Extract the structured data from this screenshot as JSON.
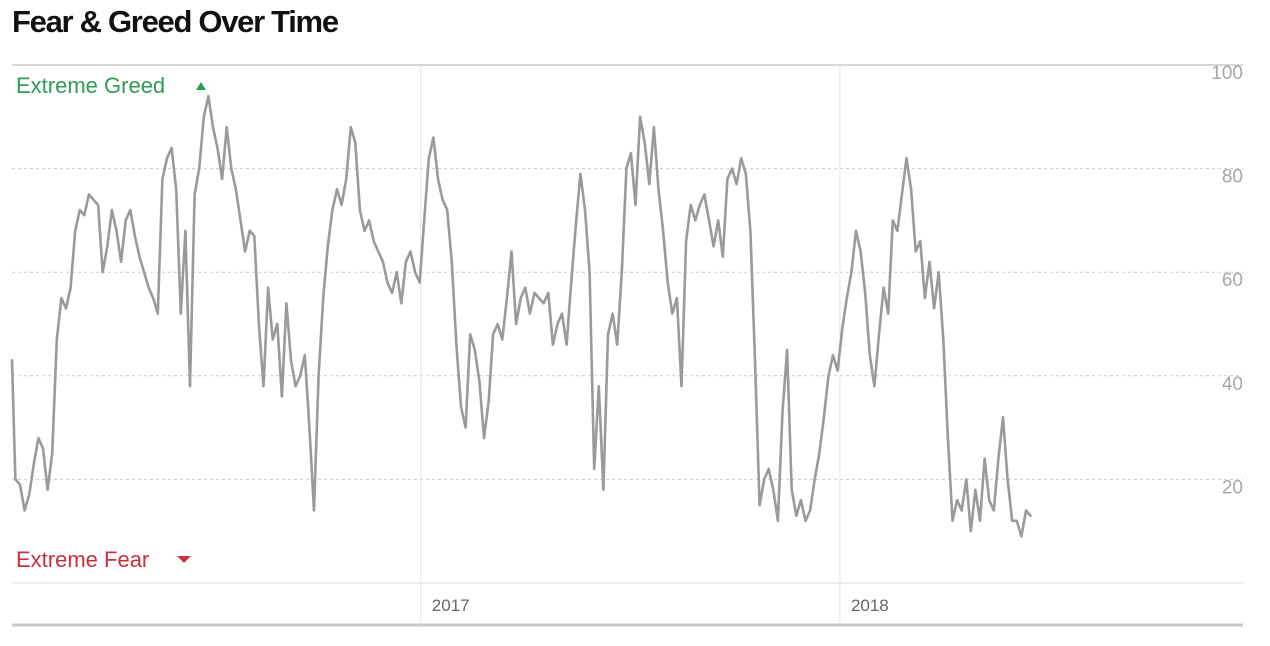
{
  "title": "Fear & Greed Over Time",
  "colors": {
    "line": "#9a9a9a",
    "greed": "#2e9c54",
    "fear": "#c8313f",
    "grid": "#cccccc",
    "tick": "#a7a7a7"
  },
  "markers": {
    "top_label": "Extreme Greed",
    "top_icon": "up-triangle-icon",
    "bottom_label": "Extreme Fear",
    "bottom_icon": "down-triangle-icon"
  },
  "chart_data": {
    "type": "line",
    "title": "Fear & Greed Over Time",
    "xlabel": "",
    "ylabel": "",
    "x_unit": "days before the start of 2017 (negative) / after",
    "x_range": [
      -356,
      716
    ],
    "ylim": [
      0,
      100
    ],
    "y_ticks": [
      20,
      40,
      60,
      80,
      100
    ],
    "y_axis_side": "right",
    "grid": "horizontal dashed",
    "x_tick_labels": [
      {
        "label": "2017",
        "x": 0
      },
      {
        "label": "2018",
        "x": 365
      }
    ],
    "series": [
      {
        "values": [
          [
            -356,
            43
          ],
          [
            -353,
            20
          ],
          [
            -349,
            19
          ],
          [
            -345,
            14
          ],
          [
            -341,
            17
          ],
          [
            -337,
            23
          ],
          [
            -333,
            28
          ],
          [
            -329,
            26
          ],
          [
            -325,
            18
          ],
          [
            -321,
            25
          ],
          [
            -317,
            47
          ],
          [
            -313,
            55
          ],
          [
            -309,
            53
          ],
          [
            -305,
            57
          ],
          [
            -301,
            68
          ],
          [
            -297,
            72
          ],
          [
            -293,
            71
          ],
          [
            -289,
            75
          ],
          [
            -285,
            74
          ],
          [
            -281,
            73
          ],
          [
            -277,
            60
          ],
          [
            -273,
            65
          ],
          [
            -269,
            72
          ],
          [
            -265,
            68
          ],
          [
            -261,
            62
          ],
          [
            -257,
            70
          ],
          [
            -253,
            72
          ],
          [
            -249,
            67
          ],
          [
            -245,
            63
          ],
          [
            -241,
            60
          ],
          [
            -237,
            57
          ],
          [
            -233,
            55
          ],
          [
            -229,
            52
          ],
          [
            -225,
            78
          ],
          [
            -221,
            82
          ],
          [
            -217,
            84
          ],
          [
            -213,
            76
          ],
          [
            -209,
            52
          ],
          [
            -205,
            68
          ],
          [
            -201,
            38
          ],
          [
            -197,
            75
          ],
          [
            -193,
            80
          ],
          [
            -189,
            90
          ],
          [
            -185,
            94
          ],
          [
            -181,
            88
          ],
          [
            -177,
            84
          ],
          [
            -173,
            78
          ],
          [
            -169,
            88
          ],
          [
            -165,
            80
          ],
          [
            -161,
            76
          ],
          [
            -157,
            70
          ],
          [
            -153,
            64
          ],
          [
            -149,
            68
          ],
          [
            -145,
            67
          ],
          [
            -141,
            50
          ],
          [
            -137,
            38
          ],
          [
            -133,
            57
          ],
          [
            -129,
            47
          ],
          [
            -125,
            50
          ],
          [
            -121,
            36
          ],
          [
            -117,
            54
          ],
          [
            -113,
            43
          ],
          [
            -109,
            38
          ],
          [
            -105,
            40
          ],
          [
            -101,
            44
          ],
          [
            -97,
            30
          ],
          [
            -93,
            14
          ],
          [
            -89,
            40
          ],
          [
            -85,
            55
          ],
          [
            -81,
            65
          ],
          [
            -77,
            72
          ],
          [
            -73,
            76
          ],
          [
            -69,
            73
          ],
          [
            -65,
            78
          ],
          [
            -61,
            88
          ],
          [
            -57,
            85
          ],
          [
            -53,
            72
          ],
          [
            -49,
            68
          ],
          [
            -45,
            70
          ],
          [
            -41,
            66
          ],
          [
            -37,
            64
          ],
          [
            -33,
            62
          ],
          [
            -29,
            58
          ],
          [
            -25,
            56
          ],
          [
            -21,
            60
          ],
          [
            -17,
            54
          ],
          [
            -13,
            62
          ],
          [
            -9,
            64
          ],
          [
            -5,
            60
          ],
          [
            -1,
            58
          ],
          [
            3,
            70
          ],
          [
            7,
            82
          ],
          [
            11,
            86
          ],
          [
            15,
            78
          ],
          [
            19,
            74
          ],
          [
            23,
            72
          ],
          [
            27,
            62
          ],
          [
            31,
            46
          ],
          [
            35,
            34
          ],
          [
            39,
            30
          ],
          [
            43,
            48
          ],
          [
            47,
            45
          ],
          [
            51,
            39
          ],
          [
            55,
            28
          ],
          [
            59,
            35
          ],
          [
            63,
            48
          ],
          [
            67,
            50
          ],
          [
            71,
            47
          ],
          [
            75,
            55
          ],
          [
            79,
            64
          ],
          [
            83,
            50
          ],
          [
            87,
            55
          ],
          [
            91,
            57
          ],
          [
            95,
            52
          ],
          [
            99,
            56
          ],
          [
            103,
            55
          ],
          [
            107,
            54
          ],
          [
            111,
            56
          ],
          [
            115,
            46
          ],
          [
            119,
            50
          ],
          [
            123,
            52
          ],
          [
            127,
            46
          ],
          [
            131,
            58
          ],
          [
            135,
            69
          ],
          [
            139,
            79
          ],
          [
            143,
            72
          ],
          [
            147,
            60
          ],
          [
            151,
            22
          ],
          [
            155,
            38
          ],
          [
            159,
            18
          ],
          [
            163,
            48
          ],
          [
            167,
            52
          ],
          [
            171,
            46
          ],
          [
            175,
            60
          ],
          [
            179,
            80
          ],
          [
            183,
            83
          ],
          [
            187,
            73
          ],
          [
            191,
            90
          ],
          [
            195,
            85
          ],
          [
            199,
            77
          ],
          [
            203,
            88
          ],
          [
            207,
            76
          ],
          [
            211,
            68
          ],
          [
            215,
            58
          ],
          [
            219,
            52
          ],
          [
            223,
            55
          ],
          [
            227,
            38
          ],
          [
            231,
            66
          ],
          [
            235,
            73
          ],
          [
            239,
            70
          ],
          [
            243,
            73
          ],
          [
            247,
            75
          ],
          [
            251,
            70
          ],
          [
            255,
            65
          ],
          [
            259,
            70
          ],
          [
            263,
            63
          ],
          [
            267,
            78
          ],
          [
            271,
            80
          ],
          [
            275,
            77
          ],
          [
            279,
            82
          ],
          [
            283,
            79
          ],
          [
            287,
            68
          ],
          [
            291,
            43
          ],
          [
            295,
            15
          ],
          [
            299,
            20
          ],
          [
            303,
            22
          ],
          [
            307,
            18
          ],
          [
            311,
            12
          ],
          [
            315,
            33
          ],
          [
            319,
            45
          ],
          [
            323,
            18
          ],
          [
            327,
            13
          ],
          [
            331,
            16
          ],
          [
            335,
            12
          ],
          [
            339,
            14
          ],
          [
            343,
            20
          ],
          [
            347,
            25
          ],
          [
            351,
            32
          ],
          [
            355,
            40
          ],
          [
            359,
            44
          ],
          [
            363,
            41
          ],
          [
            367,
            49
          ],
          [
            371,
            55
          ],
          [
            375,
            60
          ],
          [
            379,
            68
          ],
          [
            383,
            64
          ],
          [
            387,
            56
          ],
          [
            391,
            44
          ],
          [
            395,
            38
          ],
          [
            399,
            48
          ],
          [
            403,
            57
          ],
          [
            407,
            52
          ],
          [
            411,
            70
          ],
          [
            415,
            68
          ],
          [
            419,
            75
          ],
          [
            423,
            82
          ],
          [
            427,
            76
          ],
          [
            431,
            64
          ],
          [
            435,
            66
          ],
          [
            439,
            55
          ],
          [
            443,
            62
          ],
          [
            447,
            53
          ],
          [
            451,
            60
          ],
          [
            455,
            47
          ],
          [
            459,
            28
          ],
          [
            463,
            12
          ],
          [
            467,
            16
          ],
          [
            471,
            14
          ],
          [
            475,
            20
          ],
          [
            479,
            10
          ],
          [
            483,
            18
          ],
          [
            487,
            12
          ],
          [
            491,
            24
          ],
          [
            495,
            16
          ],
          [
            499,
            14
          ],
          [
            503,
            24
          ],
          [
            507,
            32
          ],
          [
            511,
            20
          ],
          [
            515,
            12
          ],
          [
            519,
            12
          ],
          [
            523,
            9
          ],
          [
            527,
            14
          ],
          [
            531,
            13
          ]
        ]
      }
    ]
  }
}
